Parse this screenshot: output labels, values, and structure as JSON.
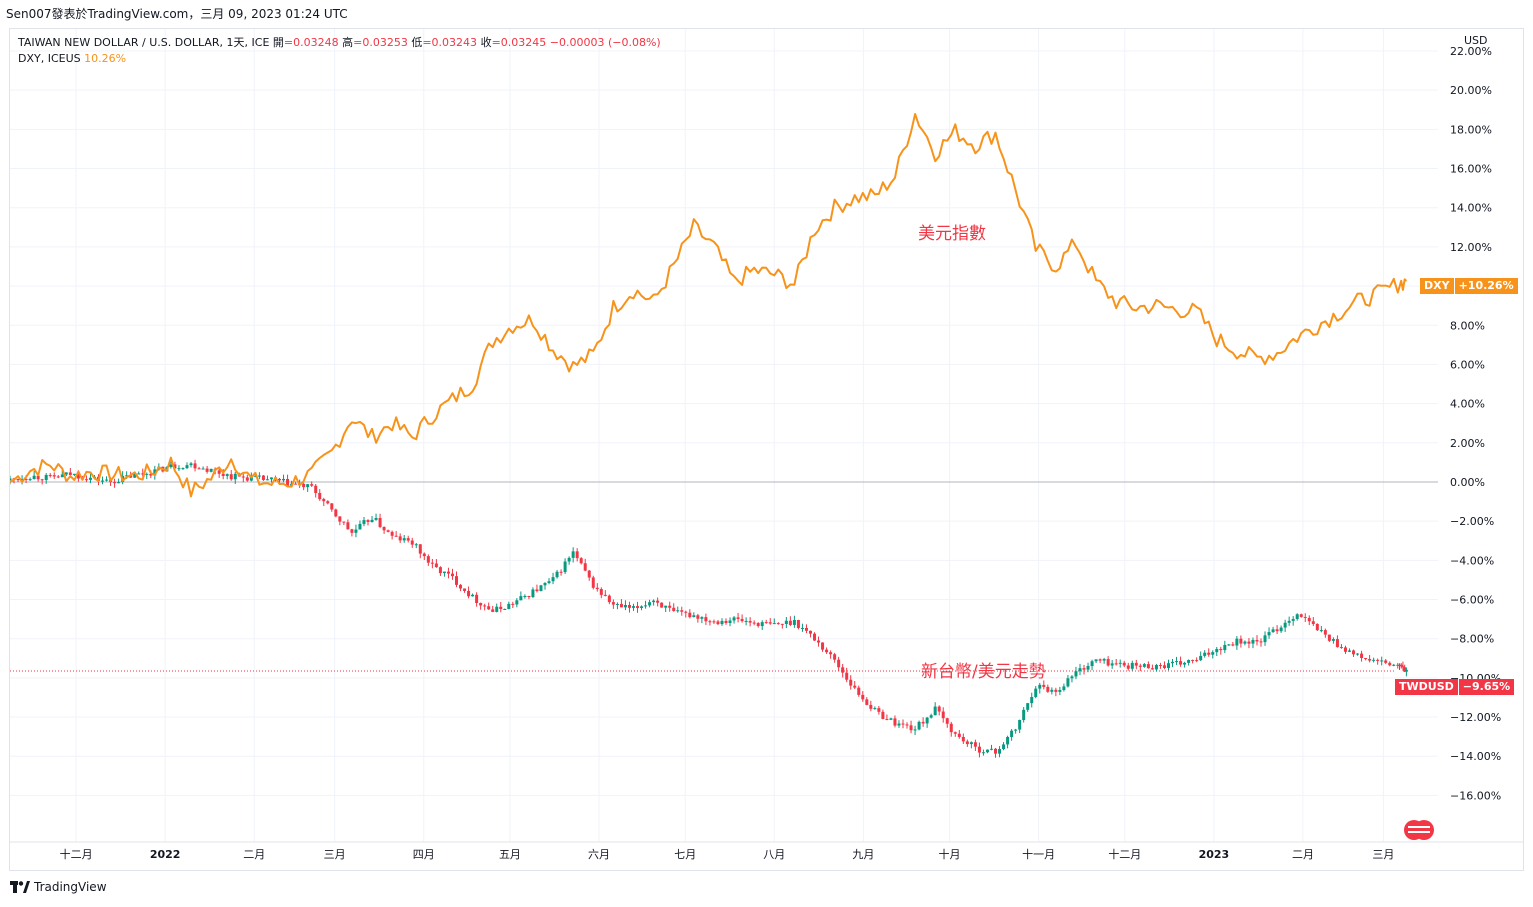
{
  "header": {
    "published": "Sen007發表於TradingView.com，三月 09, 2023 01:24 UTC"
  },
  "legend": {
    "symbol_line": "TAIWAN NEW DOLLAR / U.S. DOLLAR, 1天, ICE",
    "open_label": "開",
    "open_value": "=0.03248",
    "high_label": "高",
    "high_value": "=0.03253",
    "low_label": "低",
    "low_value": "=0.03243",
    "close_label": "收",
    "close_value": "=0.03245",
    "change": "−0.00003 (−0.08%)",
    "overlay_name": "DXY, ICEUS",
    "overlay_value": "10.26%"
  },
  "price_axis": {
    "currency": "USD"
  },
  "annotations": {
    "dxy": "美元指數",
    "twd": "新台幣/美元走勢"
  },
  "price_tags": {
    "dxy_name": "DXY",
    "dxy_value": "+10.26%",
    "twd_name": "TWDUSD",
    "twd_value": "−9.65%"
  },
  "footer": {
    "logo_text": "TradingView"
  },
  "colors": {
    "dxy_line": "#f7931a",
    "candle_up": "#089981",
    "candle_down": "#f23645",
    "grid": "#f0f3fa",
    "zero_line": "#b2b5be"
  },
  "chart_data": {
    "type": "line",
    "scale": "percent",
    "ylim": [
      -17,
      22
    ],
    "y_ticks": [
      "22.00%",
      "20.00%",
      "18.00%",
      "16.00%",
      "14.00%",
      "12.00%",
      "10.00%",
      "8.00%",
      "6.00%",
      "4.00%",
      "2.00%",
      "0.00%",
      "−2.00%",
      "−4.00%",
      "−6.00%",
      "−8.00%",
      "−10.00%",
      "−12.00%",
      "−14.00%",
      "−16.00%"
    ],
    "y_tick_values": [
      22,
      20,
      18,
      16,
      14,
      12,
      10,
      8,
      6,
      4,
      2,
      0,
      -2,
      -4,
      -6,
      -8,
      -10,
      -12,
      -14,
      -16
    ],
    "x_ticks": [
      "十二月",
      "2022",
      "二月",
      "三月",
      "四月",
      "五月",
      "六月",
      "七月",
      "八月",
      "九月",
      "十月",
      "十一月",
      "十二月",
      "2023",
      "二月",
      "三月"
    ],
    "x_tick_dates": [
      "2021-12-01",
      "2022-01-01",
      "2022-02-01",
      "2022-03-01",
      "2022-04-01",
      "2022-05-01",
      "2022-06-01",
      "2022-07-01",
      "2022-08-01",
      "2022-09-01",
      "2022-10-01",
      "2022-11-01",
      "2022-12-01",
      "2023-01-01",
      "2023-02-01",
      "2023-03-01"
    ],
    "x_start": "2021-11-08",
    "x_end": "2023-03-20",
    "series": [
      {
        "name": "DXY",
        "kind": "line",
        "dates": [
          "2021-11-08",
          "2021-11-15",
          "2021-11-22",
          "2021-11-29",
          "2021-12-06",
          "2021-12-13",
          "2021-12-20",
          "2021-12-27",
          "2022-01-03",
          "2022-01-10",
          "2022-01-17",
          "2022-01-24",
          "2022-01-31",
          "2022-02-07",
          "2022-02-14",
          "2022-02-21",
          "2022-02-28",
          "2022-03-07",
          "2022-03-14",
          "2022-03-21",
          "2022-03-28",
          "2022-04-04",
          "2022-04-11",
          "2022-04-18",
          "2022-04-25",
          "2022-05-02",
          "2022-05-09",
          "2022-05-16",
          "2022-05-23",
          "2022-05-30",
          "2022-06-06",
          "2022-06-13",
          "2022-06-20",
          "2022-06-27",
          "2022-07-04",
          "2022-07-11",
          "2022-07-18",
          "2022-07-25",
          "2022-08-01",
          "2022-08-08",
          "2022-08-15",
          "2022-08-22",
          "2022-08-29",
          "2022-09-05",
          "2022-09-12",
          "2022-09-19",
          "2022-09-26",
          "2022-10-03",
          "2022-10-10",
          "2022-10-17",
          "2022-10-24",
          "2022-10-31",
          "2022-11-07",
          "2022-11-14",
          "2022-11-21",
          "2022-11-28",
          "2022-12-05",
          "2022-12-12",
          "2022-12-19",
          "2022-12-26",
          "2023-01-02",
          "2023-01-09",
          "2023-01-16",
          "2023-01-23",
          "2023-01-30",
          "2023-02-06",
          "2023-02-13",
          "2023-02-20",
          "2023-02-27",
          "2023-03-06",
          "2023-03-09"
        ],
        "values": [
          0.0,
          0.6,
          0.9,
          0.3,
          0.5,
          0.4,
          0.3,
          0.5,
          1.0,
          -0.5,
          0.2,
          1.2,
          0.1,
          -0.1,
          0.0,
          0.4,
          1.5,
          3.3,
          2.3,
          3.0,
          2.3,
          3.4,
          4.2,
          5.0,
          7.2,
          8.0,
          8.3,
          6.8,
          5.9,
          6.5,
          8.9,
          9.8,
          9.2,
          11.0,
          13.0,
          12.0,
          10.2,
          10.8,
          10.6,
          10.1,
          12.9,
          14.0,
          14.5,
          14.6,
          15.6,
          18.8,
          16.8,
          17.9,
          17.2,
          17.8,
          14.9,
          11.9,
          11.0,
          12.2,
          10.2,
          9.2,
          8.9,
          9.0,
          8.8,
          8.7,
          7.3,
          6.7,
          6.3,
          6.6,
          7.4,
          8.0,
          8.6,
          9.2,
          9.6,
          10.1,
          10.26
        ]
      },
      {
        "name": "TWDUSD",
        "kind": "candles",
        "dates": [
          "2021-11-08",
          "2021-11-15",
          "2021-11-22",
          "2021-11-29",
          "2021-12-06",
          "2021-12-13",
          "2021-12-20",
          "2021-12-27",
          "2022-01-03",
          "2022-01-10",
          "2022-01-17",
          "2022-01-24",
          "2022-01-31",
          "2022-02-07",
          "2022-02-14",
          "2022-02-21",
          "2022-02-28",
          "2022-03-07",
          "2022-03-14",
          "2022-03-21",
          "2022-03-28",
          "2022-04-04",
          "2022-04-11",
          "2022-04-18",
          "2022-04-25",
          "2022-05-02",
          "2022-05-09",
          "2022-05-16",
          "2022-05-23",
          "2022-05-30",
          "2022-06-06",
          "2022-06-13",
          "2022-06-20",
          "2022-06-27",
          "2022-07-04",
          "2022-07-11",
          "2022-07-18",
          "2022-07-25",
          "2022-08-01",
          "2022-08-08",
          "2022-08-15",
          "2022-08-22",
          "2022-08-29",
          "2022-09-05",
          "2022-09-12",
          "2022-09-19",
          "2022-09-26",
          "2022-10-03",
          "2022-10-10",
          "2022-10-17",
          "2022-10-24",
          "2022-10-31",
          "2022-11-07",
          "2022-11-14",
          "2022-11-21",
          "2022-11-28",
          "2022-12-05",
          "2022-12-12",
          "2022-12-19",
          "2022-12-26",
          "2023-01-02",
          "2023-01-09",
          "2023-01-16",
          "2023-01-23",
          "2023-01-30",
          "2023-02-06",
          "2023-02-13",
          "2023-02-20",
          "2023-02-27",
          "2023-03-06",
          "2023-03-09"
        ],
        "values": [
          0.1,
          0.3,
          0.2,
          0.4,
          0.2,
          0.0,
          0.3,
          0.5,
          0.8,
          0.9,
          0.6,
          0.3,
          0.2,
          0.1,
          -0.1,
          -0.3,
          -1.5,
          -2.6,
          -1.8,
          -2.8,
          -3.1,
          -4.3,
          -4.9,
          -5.9,
          -6.6,
          -6.2,
          -5.6,
          -5.0,
          -3.6,
          -5.3,
          -6.3,
          -6.5,
          -6.0,
          -6.7,
          -6.8,
          -7.1,
          -7.0,
          -7.2,
          -7.3,
          -7.1,
          -8.0,
          -9.1,
          -10.6,
          -11.7,
          -12.3,
          -12.6,
          -11.6,
          -12.9,
          -13.6,
          -13.8,
          -12.6,
          -10.4,
          -10.7,
          -9.7,
          -9.1,
          -9.3,
          -9.4,
          -9.4,
          -9.3,
          -9.1,
          -8.5,
          -8.1,
          -8.2,
          -7.5,
          -6.7,
          -7.5,
          -8.3,
          -8.9,
          -9.2,
          -9.4,
          -9.65
        ]
      }
    ]
  }
}
